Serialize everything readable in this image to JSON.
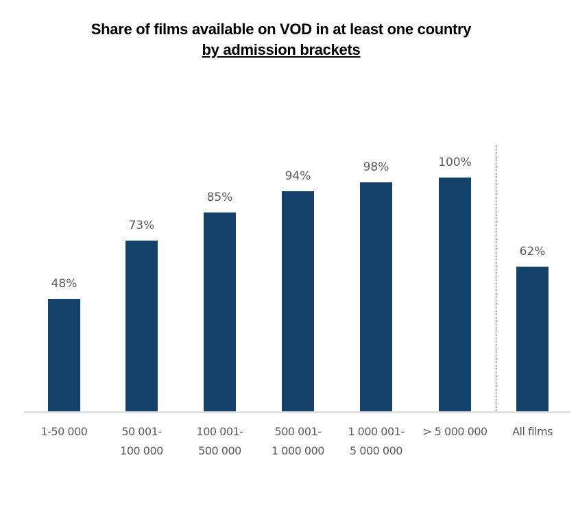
{
  "chart_data": {
    "type": "bar",
    "title": "Share of films available on VOD in at least one country",
    "subtitle": "by admission brackets",
    "categories": [
      "1-50 000",
      "50 001-\n100 000",
      "100 001-\n500 000",
      "500 001-\n1 000 000",
      "1 000 001-\n5 000 000",
      "> 5 000 000",
      "All films"
    ],
    "values": [
      48,
      73,
      85,
      94,
      98,
      100,
      62
    ],
    "labels": [
      "48%",
      "73%",
      "85%",
      "94%",
      "98%",
      "100%",
      "62%"
    ],
    "xlabel": "",
    "ylabel": "",
    "ylim": [
      0,
      100
    ],
    "grid": false,
    "legend": null,
    "annotations": [
      "dashed vertical separator between '> 5 000 000' and 'All films'"
    ],
    "bar_color": "#14426a"
  },
  "title_line1": "Share of films available on VOD in at least one country",
  "title_line2": "by admission brackets",
  "categories": [
    {
      "line1": "1-50 000",
      "line2": ""
    },
    {
      "line1": "50 001-",
      "line2": "100 000"
    },
    {
      "line1": "100 001-",
      "line2": "500 000"
    },
    {
      "line1": "500 001-",
      "line2": "1 000 000"
    },
    {
      "line1": "1 000 001-",
      "line2": "5 000 000"
    },
    {
      "line1": "> 5 000 000",
      "line2": ""
    },
    {
      "line1": "All films",
      "line2": ""
    }
  ],
  "labels": [
    "48%",
    "73%",
    "85%",
    "94%",
    "98%",
    "100%",
    "62%"
  ]
}
